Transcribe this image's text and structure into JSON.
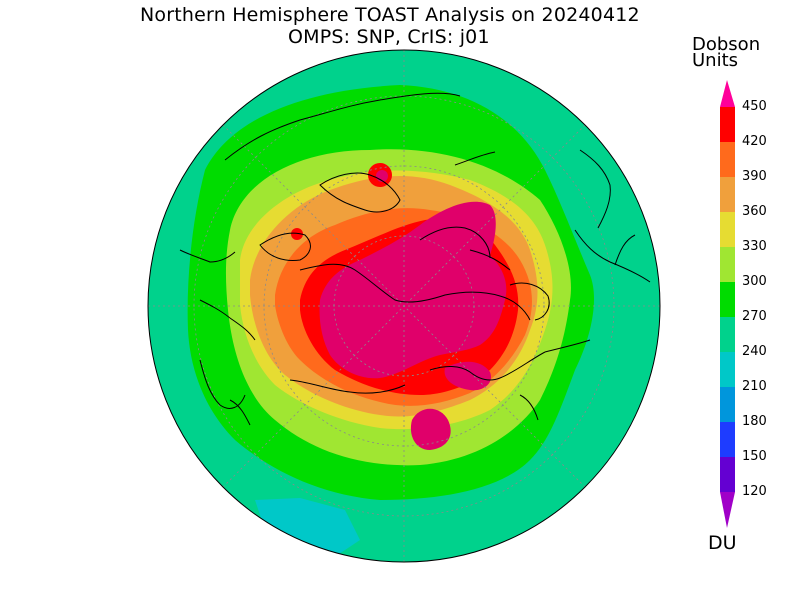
{
  "header": {
    "title_line1": "Northern Hemisphere TOAST Analysis on 20240412",
    "title_line2": "OMPS: SNP, CrIS: j01"
  },
  "colorbar": {
    "title_line1": "Dobson",
    "title_line2": "Units",
    "unit_bottom": "DU",
    "ticks": [
      "450",
      "420",
      "390",
      "360",
      "330",
      "300",
      "270",
      "240",
      "210",
      "180",
      "150",
      "120"
    ],
    "bands": [
      {
        "range": "above 450",
        "color": "#ff009a"
      },
      {
        "range": "420-450",
        "color": "#ff0000"
      },
      {
        "range": "390-420",
        "color": "#ff6a1c"
      },
      {
        "range": "360-390",
        "color": "#f0a03c"
      },
      {
        "range": "330-360",
        "color": "#e6dc32"
      },
      {
        "range": "300-330",
        "color": "#a0e632"
      },
      {
        "range": "270-300",
        "color": "#00dc00"
      },
      {
        "range": "240-270",
        "color": "#00d28c"
      },
      {
        "range": "210-240",
        "color": "#00c8c8"
      },
      {
        "range": "180-210",
        "color": "#0096dc"
      },
      {
        "range": "150-180",
        "color": "#1e3cff"
      },
      {
        "range": "120-150",
        "color": "#6400d2"
      },
      {
        "range": "below 120",
        "color": "#a000c8"
      }
    ]
  },
  "map": {
    "projection": "north polar stereographic",
    "colors": {
      "background_ring": "#00d28c",
      "green": "#00dc00",
      "light_green": "#a0e632",
      "yellow": "#e6dc32",
      "orange": "#f0a03c",
      "dark_orange": "#ff6a1c",
      "red": "#ff0000",
      "magenta": "#e0006a",
      "cyan_patch": "#00c8c8",
      "coastline": "#000000"
    }
  }
}
